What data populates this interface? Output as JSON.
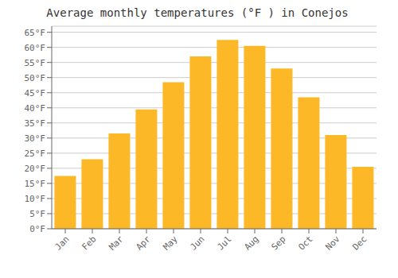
{
  "chart_data": {
    "type": "bar",
    "title": "Average monthly temperatures (°F ) in Conejos",
    "categories": [
      "Jan",
      "Feb",
      "Mar",
      "Apr",
      "May",
      "Jun",
      "Jul",
      "Aug",
      "Sep",
      "Oct",
      "Nov",
      "Dec"
    ],
    "values": [
      17.5,
      23.0,
      31.5,
      39.5,
      48.5,
      57.0,
      62.5,
      60.5,
      53.0,
      43.5,
      31.0,
      20.5
    ],
    "color": "#FDB827",
    "ylim": [
      0,
      67
    ],
    "yticks": [
      {
        "value": 0,
        "label": "0°F"
      },
      {
        "value": 5,
        "label": "5°F"
      },
      {
        "value": 10,
        "label": "10°F"
      },
      {
        "value": 15,
        "label": "15°F"
      },
      {
        "value": 20,
        "label": "20°F"
      },
      {
        "value": 25,
        "label": "25°F"
      },
      {
        "value": 30,
        "label": "30°F"
      },
      {
        "value": 35,
        "label": "35°F"
      },
      {
        "value": 40,
        "label": "40°F"
      },
      {
        "value": 45,
        "label": "45°F"
      },
      {
        "value": 50,
        "label": "50°F"
      },
      {
        "value": 55,
        "label": "55°F"
      },
      {
        "value": 60,
        "label": "60°F"
      },
      {
        "value": 65,
        "label": "65°F"
      }
    ],
    "grid": true
  }
}
